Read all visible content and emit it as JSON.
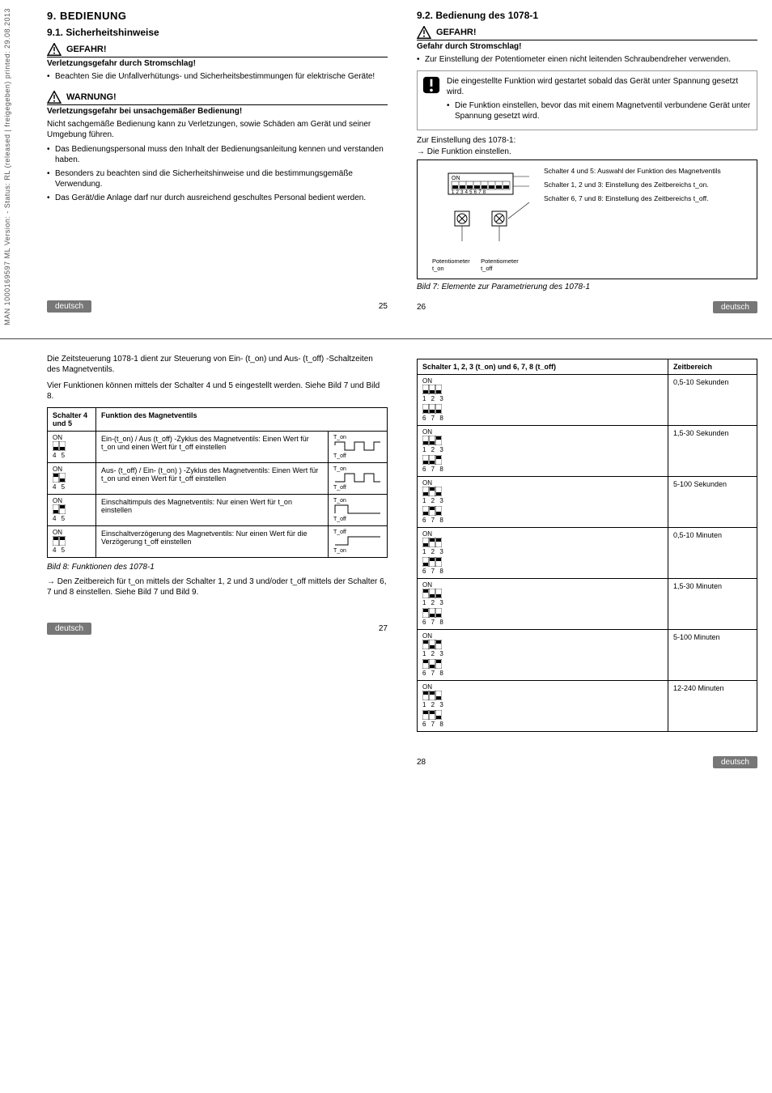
{
  "sidebar_text": "MAN 1000169597 ML Version: -   Status: RL (released | freigegeben)  printed: 29.08.2013",
  "lang_label": "deutsch",
  "page25": {
    "h1": "9.   BEDIENUNG",
    "h2": "9.1. Sicherheitshinweise",
    "danger_title": "GEFAHR!",
    "danger_sub": "Verletzungsgefahr durch Stromschlag!",
    "danger_items": [
      "Beachten Sie die Unfallverhütungs- und Sicherheitsbestimmungen für elektrische Geräte!"
    ],
    "warn_title": "WARNUNG!",
    "warn_sub": "Verletzungsgefahr bei unsachgemäßer Bedienung!",
    "warn_body": "Nicht sachgemäße Bedienung kann zu Verletzungen, sowie Schäden am Gerät und seiner Umgebung führen.",
    "warn_items": [
      "Das Bedienungspersonal muss den Inhalt der Bedienungsanleitung kennen und verstanden haben.",
      "Besonders zu beachten sind die Sicherheitshinweise und die bestimmungsgemäße Verwendung.",
      "Das Gerät/die Anlage darf nur durch ausreichend geschultes Personal bedient werden."
    ],
    "pagenum": "25"
  },
  "page26": {
    "h2": "9.2. Bedienung des 1078-1",
    "danger_title": "GEFAHR!",
    "danger_sub": "Gefahr durch Stromschlag!",
    "danger_items": [
      "Zur Einstellung der Potentiometer einen nicht leitenden Schraubendreher verwenden."
    ],
    "note_body": "Die eingestellte Funktion wird gestartet sobald das Gerät unter Spannung gesetzt wird.",
    "note_items": [
      "Die Funktion einstellen, bevor das mit einem Magnetventil verbundene Gerät unter Spannung gesetzt wird."
    ],
    "line1": "Zur Einstellung des 1078-1:",
    "line2": "→ Die Funktion einstellen.",
    "callouts": [
      "Schalter 4 und 5: Auswahl der Funktion des Magnetventils",
      "Schalter 1, 2 und 3: Einstellung des Zeitbereichs t_on.",
      "Schalter 6, 7 und 8: Einstellung des Zeitbereichs t_off."
    ],
    "pot_on": "Potentiometer t_on",
    "pot_off": "Potentiometer t_off",
    "dip_label_on": "ON",
    "dip_nums": "1 2 3 4 5 6 7 8",
    "fig_caption": "Bild 7:   Elemente zur Parametrierung des 1078-1",
    "pagenum": "26"
  },
  "page27": {
    "intro1": "Die Zeitsteuerung 1078-1 dient zur Steuerung von Ein- (t_on) und Aus- (t_off) -Schaltzeiten des Magnetventils.",
    "intro2": "Vier Funktionen können mittels der Schalter 4 und 5 eingestellt werden. Siehe Bild 7 und Bild 8.",
    "th1": "Schalter 4 und 5",
    "th2": "Funktion des Magnetventils",
    "rows": [
      {
        "sw": "ON",
        "pattern": [
          0,
          0
        ],
        "nums": "4 5",
        "desc": "Ein-(t_on) / Aus (t_off) -Zyklus des Magnetventils: Einen Wert für t_on und einen Wert für t_off einstellen",
        "wf_labels": [
          "T_on",
          "T_off"
        ]
      },
      {
        "sw": "ON",
        "pattern": [
          1,
          0
        ],
        "nums": "4 5",
        "desc": "Aus- (t_off) / Ein- (t_on) ) -Zyklus des Magnetventils: Einen Wert für t_on und einen Wert für t_off einstellen",
        "wf_labels": [
          "T_on",
          "T_off"
        ]
      },
      {
        "sw": "ON",
        "pattern": [
          0,
          1
        ],
        "nums": "4 5",
        "desc": "Einschaltimpuls des Magnetventils: Nur einen Wert für t_on einstellen",
        "wf_labels": [
          "T_on",
          "T_off"
        ]
      },
      {
        "sw": "ON",
        "pattern": [
          1,
          1
        ],
        "nums": "4 5",
        "desc": "Einschaltverzögerung des Magnetventils: Nur einen Wert für die Verzögerung t_off einstellen",
        "wf_labels": [
          "T_off",
          "T_on"
        ]
      }
    ],
    "fig_caption": "Bild 8:   Funktionen des 1078-1",
    "after": "→ Den Zeitbereich für t_on mittels der Schalter 1, 2 und 3 und/oder t_off mittels der Schalter 6, 7 und 8 einstellen. Siehe Bild 7 und Bild 9.",
    "pagenum": "27"
  },
  "page28": {
    "th1": "Schalter 1, 2, 3 (t_on) und 6, 7, 8 (t_off)",
    "th2": "Zeitbereich",
    "rows": [
      {
        "p1": [
          0,
          0,
          0
        ],
        "p2": [
          0,
          0,
          0
        ],
        "range": "0,5-10 Sekunden"
      },
      {
        "p1": [
          0,
          0,
          1
        ],
        "p2": [
          0,
          0,
          1
        ],
        "range": "1,5-30 Sekunden"
      },
      {
        "p1": [
          0,
          1,
          0
        ],
        "p2": [
          0,
          1,
          0
        ],
        "range": "5-100 Sekunden"
      },
      {
        "p1": [
          0,
          1,
          1
        ],
        "p2": [
          0,
          1,
          1
        ],
        "range": "0,5-10 Minuten"
      },
      {
        "p1": [
          1,
          0,
          0
        ],
        "p2": [
          1,
          0,
          0
        ],
        "range": "1,5-30 Minuten"
      },
      {
        "p1": [
          1,
          0,
          1
        ],
        "p2": [
          1,
          0,
          1
        ],
        "range": "5-100 Minuten"
      },
      {
        "p1": [
          1,
          1,
          0
        ],
        "p2": [
          1,
          1,
          0
        ],
        "range": "12-240 Minuten"
      }
    ],
    "nums1": "1 2 3",
    "nums2": "6 7 8",
    "on": "ON",
    "pagenum": "28"
  }
}
